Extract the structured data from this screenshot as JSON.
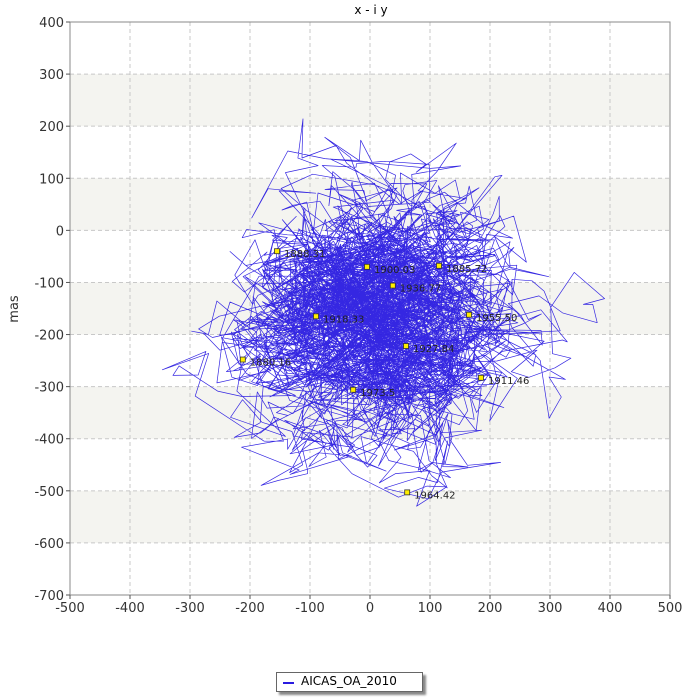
{
  "chart_data": {
    "type": "line",
    "title": "x - i y",
    "xlabel": "",
    "ylabel": "mas",
    "xlim": [
      -500,
      500
    ],
    "ylim": [
      -700,
      400
    ],
    "xticks": [
      -500,
      -400,
      -300,
      -200,
      -100,
      0,
      100,
      200,
      300,
      400,
      500
    ],
    "yticks": [
      400,
      300,
      200,
      100,
      0,
      -100,
      -200,
      -300,
      -400,
      -500,
      -600,
      -700
    ],
    "grid": true,
    "legend_position": "bottom-center",
    "series": [
      {
        "name": "AICAS_OA_2010",
        "color": "#2a1be0",
        "x_range": [
          -470,
          460
        ],
        "y_range": [
          -655,
          260
        ],
        "center": [
          20,
          -180
        ]
      }
    ],
    "annotations": [
      {
        "label": "1888.31",
        "x": -155,
        "y": -40
      },
      {
        "label": "1900.03",
        "x": -5,
        "y": -70
      },
      {
        "label": "1885.72",
        "x": 115,
        "y": -68
      },
      {
        "label": "1936.77",
        "x": 38,
        "y": -106
      },
      {
        "label": "1918.33",
        "x": -90,
        "y": -165
      },
      {
        "label": "1955.50",
        "x": 165,
        "y": -162
      },
      {
        "label": "1927.84",
        "x": 60,
        "y": -222
      },
      {
        "label": "1880.16",
        "x": -212,
        "y": -248
      },
      {
        "label": "1911.46",
        "x": 185,
        "y": -283
      },
      {
        "label": "1973.5",
        "x": -28,
        "y": -306
      },
      {
        "label": "1964.42",
        "x": 62,
        "y": -503
      }
    ]
  },
  "legend": {
    "label": "AICAS_OA_2010"
  }
}
